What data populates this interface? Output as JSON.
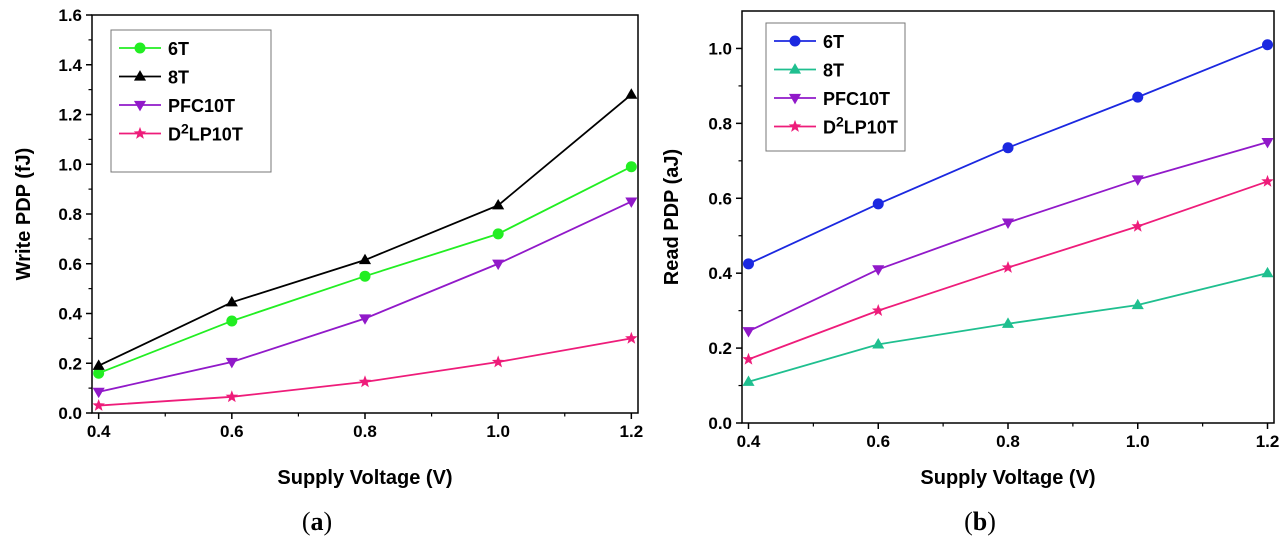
{
  "chart_data": [
    {
      "type": "line",
      "caption_open": "(",
      "caption_letter": "a",
      "caption_close": ")",
      "xlabel": "Supply Voltage (V)",
      "ylabel": "Write PDP (fJ)",
      "x": [
        0.4,
        0.6,
        0.8,
        1.0,
        1.2
      ],
      "xlim": [
        0.39,
        1.21
      ],
      "ylim": [
        0.0,
        1.6
      ],
      "xticks": [
        "0.4",
        "0.6",
        "0.8",
        "1.0",
        "1.2"
      ],
      "yticks": [
        "0.0",
        "0.2",
        "0.4",
        "0.6",
        "0.8",
        "1.0",
        "1.2",
        "1.4",
        "1.6"
      ],
      "legend_position": "top-left",
      "series": [
        {
          "name": "6T",
          "name_base": "6T",
          "name_sup": "",
          "name_rest": "",
          "color": "#22ee22",
          "marker": "circle",
          "values": [
            0.16,
            0.37,
            0.55,
            0.72,
            0.99
          ]
        },
        {
          "name": "8T",
          "name_base": "8T",
          "name_sup": "",
          "name_rest": "",
          "color": "#000000",
          "marker": "triangle-up",
          "values": [
            0.19,
            0.445,
            0.615,
            0.835,
            1.28
          ]
        },
        {
          "name": "PFC10T",
          "name_base": "PFC10T",
          "name_sup": "",
          "name_rest": "",
          "color": "#9119c9",
          "marker": "triangle-down",
          "values": [
            0.085,
            0.205,
            0.38,
            0.6,
            0.85
          ]
        },
        {
          "name": "D2LP10T",
          "name_base": "D",
          "name_sup": "2",
          "name_rest": "LP10T",
          "color": "#ee1c7a",
          "marker": "star",
          "values": [
            0.03,
            0.065,
            0.125,
            0.205,
            0.3
          ]
        }
      ]
    },
    {
      "type": "line",
      "caption_open": "(",
      "caption_letter": "b",
      "caption_close": ")",
      "xlabel": "Supply Voltage (V)",
      "ylabel": "Read PDP (aJ)",
      "x": [
        0.4,
        0.6,
        0.8,
        1.0,
        1.2
      ],
      "xlim": [
        0.39,
        1.21
      ],
      "ylim": [
        0.0,
        1.1
      ],
      "xticks": [
        "0.4",
        "0.6",
        "0.8",
        "1.0",
        "1.2"
      ],
      "yticks": [
        "0.0",
        "0.2",
        "0.4",
        "0.6",
        "0.8",
        "1.0"
      ],
      "legend_position": "top-left",
      "series": [
        {
          "name": "6T",
          "name_base": "6T",
          "name_sup": "",
          "name_rest": "",
          "color": "#1b28e0",
          "marker": "circle",
          "values": [
            0.425,
            0.585,
            0.735,
            0.87,
            1.01
          ]
        },
        {
          "name": "8T",
          "name_base": "8T",
          "name_sup": "",
          "name_rest": "",
          "color": "#1fbf8f",
          "marker": "triangle-up",
          "values": [
            0.11,
            0.21,
            0.265,
            0.315,
            0.4
          ]
        },
        {
          "name": "PFC10T",
          "name_base": "PFC10T",
          "name_sup": "",
          "name_rest": "",
          "color": "#9119c9",
          "marker": "triangle-down",
          "values": [
            0.245,
            0.41,
            0.535,
            0.65,
            0.75
          ]
        },
        {
          "name": "D2LP10T",
          "name_base": "D",
          "name_sup": "2",
          "name_rest": "LP10T",
          "color": "#ee1c7a",
          "marker": "star",
          "values": [
            0.17,
            0.3,
            0.415,
            0.525,
            0.645
          ]
        }
      ]
    }
  ]
}
